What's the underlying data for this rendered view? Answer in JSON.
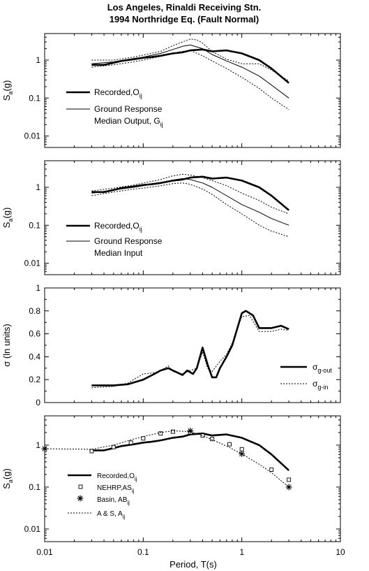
{
  "title": {
    "line1": "Los Angeles, Rinaldi Receiving Stn.",
    "line2": "1994 Northridge Eq. (Fault Normal)"
  },
  "x_axis": {
    "label": "Period, T(s)",
    "scale": "log",
    "range": [
      0.01,
      10
    ],
    "tick_labels": [
      "0.01",
      "0.1",
      "1",
      "10"
    ]
  },
  "chart_data": [
    {
      "type": "line",
      "panel": "a",
      "ylabel": "S_a(g)",
      "yscale": "log",
      "ylim": [
        0.005,
        5
      ],
      "ytick_labels": [
        "0.01",
        "0.1",
        "1"
      ],
      "legend": [
        {
          "main": "Recorded,O",
          "sub": "ij",
          "style": "thick"
        },
        {
          "main": "Ground Response",
          "style": "thin"
        },
        {
          "main": "Median Output, G",
          "sub": "ij",
          "style": "none"
        }
      ],
      "series": [
        {
          "name": "Recorded,Oij",
          "style": "thick",
          "x": [
            0.03,
            0.04,
            0.05,
            0.06,
            0.08,
            0.1,
            0.12,
            0.15,
            0.2,
            0.25,
            0.3,
            0.4,
            0.5,
            0.7,
            1.0,
            1.5,
            2.0,
            3.0
          ],
          "y": [
            0.75,
            0.75,
            0.85,
            0.95,
            1.05,
            1.15,
            1.2,
            1.3,
            1.5,
            1.6,
            1.8,
            1.9,
            1.7,
            1.8,
            1.5,
            1.0,
            0.6,
            0.25
          ]
        },
        {
          "style": "thin",
          "x": [
            0.03,
            0.05,
            0.08,
            0.1,
            0.15,
            0.2,
            0.25,
            0.3,
            0.4,
            0.5,
            0.7,
            1.0,
            1.5,
            2.0,
            3.0
          ],
          "y": [
            0.8,
            0.9,
            1.1,
            1.2,
            1.5,
            1.9,
            2.3,
            2.5,
            2.0,
            1.4,
            0.95,
            0.65,
            0.38,
            0.22,
            0.1
          ]
        },
        {
          "style": "dotted",
          "x": [
            0.03,
            0.05,
            0.08,
            0.1,
            0.15,
            0.2,
            0.25,
            0.3,
            0.35,
            0.4,
            0.5,
            0.7,
            1.0,
            1.5,
            2.0,
            3.0
          ],
          "y": [
            1.0,
            1.0,
            1.2,
            1.35,
            1.7,
            2.4,
            3.0,
            3.6,
            3.4,
            2.8,
            1.7,
            1.05,
            0.8,
            0.8,
            0.55,
            0.28
          ]
        },
        {
          "style": "dotted",
          "x": [
            0.03,
            0.05,
            0.08,
            0.1,
            0.15,
            0.2,
            0.25,
            0.3,
            0.4,
            0.5,
            0.7,
            1.0,
            1.5,
            2.0,
            3.0
          ],
          "y": [
            0.65,
            0.75,
            0.9,
            1.0,
            1.25,
            1.5,
            1.7,
            1.8,
            1.3,
            0.95,
            0.6,
            0.35,
            0.18,
            0.1,
            0.05
          ]
        }
      ]
    },
    {
      "type": "line",
      "panel": "b",
      "ylabel": "S_a(g)",
      "yscale": "log",
      "ylim": [
        0.005,
        5
      ],
      "ytick_labels": [
        "0.01",
        "0.1",
        "1"
      ],
      "legend": [
        {
          "main": "Recorded,O",
          "sub": "ij",
          "style": "thick"
        },
        {
          "main": "Ground Response",
          "style": "thin"
        },
        {
          "main": "Median Input",
          "style": "none"
        }
      ],
      "series": [
        {
          "name": "Recorded,Oij",
          "style": "thick",
          "x": [
            0.03,
            0.04,
            0.05,
            0.06,
            0.08,
            0.1,
            0.12,
            0.15,
            0.2,
            0.25,
            0.3,
            0.4,
            0.5,
            0.7,
            1.0,
            1.5,
            2.0,
            3.0
          ],
          "y": [
            0.75,
            0.75,
            0.85,
            0.95,
            1.05,
            1.15,
            1.2,
            1.3,
            1.5,
            1.6,
            1.8,
            1.9,
            1.7,
            1.8,
            1.5,
            1.0,
            0.6,
            0.25
          ]
        },
        {
          "style": "thin",
          "x": [
            0.03,
            0.05,
            0.08,
            0.1,
            0.15,
            0.2,
            0.25,
            0.3,
            0.4,
            0.5,
            0.7,
            1.0,
            1.5,
            2.0,
            3.0
          ],
          "y": [
            0.7,
            0.85,
            1.0,
            1.1,
            1.3,
            1.55,
            1.7,
            1.6,
            1.3,
            1.0,
            0.6,
            0.35,
            0.22,
            0.15,
            0.1
          ]
        },
        {
          "style": "dotted",
          "x": [
            0.03,
            0.05,
            0.08,
            0.1,
            0.15,
            0.2,
            0.25,
            0.3,
            0.4,
            0.5,
            0.7,
            1.0,
            1.5,
            2.0,
            3.0
          ],
          "y": [
            0.8,
            0.95,
            1.15,
            1.3,
            1.6,
            2.0,
            2.2,
            2.1,
            1.8,
            1.5,
            1.1,
            0.7,
            0.45,
            0.3,
            0.2
          ]
        },
        {
          "style": "dotted",
          "x": [
            0.03,
            0.05,
            0.08,
            0.1,
            0.15,
            0.2,
            0.25,
            0.3,
            0.4,
            0.5,
            0.7,
            1.0,
            1.5,
            2.0,
            3.0
          ],
          "y": [
            0.6,
            0.75,
            0.9,
            0.95,
            1.1,
            1.25,
            1.3,
            1.2,
            0.9,
            0.65,
            0.35,
            0.2,
            0.1,
            0.07,
            0.05
          ]
        }
      ]
    },
    {
      "type": "line",
      "panel": "c",
      "ylabel": "σ (ln units)",
      "yscale": "linear",
      "ylim": [
        0,
        1
      ],
      "ytick_labels": [
        "0",
        "0.2",
        "0.4",
        "0.6",
        "0.8",
        "1"
      ],
      "legend": [
        {
          "main": "σ",
          "sub": "g-out",
          "style": "thick"
        },
        {
          "main": "σ",
          "sub": "g-in",
          "style": "dotted"
        }
      ],
      "series": [
        {
          "name": "σg-out",
          "style": "thick",
          "x": [
            0.03,
            0.05,
            0.07,
            0.1,
            0.13,
            0.15,
            0.18,
            0.2,
            0.25,
            0.28,
            0.32,
            0.35,
            0.4,
            0.45,
            0.5,
            0.55,
            0.6,
            0.7,
            0.8,
            1.0,
            1.1,
            1.3,
            1.5,
            2.0,
            2.5,
            3.0
          ],
          "y": [
            0.15,
            0.15,
            0.16,
            0.2,
            0.25,
            0.28,
            0.3,
            0.28,
            0.24,
            0.28,
            0.25,
            0.3,
            0.48,
            0.33,
            0.22,
            0.22,
            0.3,
            0.4,
            0.5,
            0.78,
            0.8,
            0.76,
            0.65,
            0.65,
            0.67,
            0.64
          ]
        },
        {
          "name": "σg-in",
          "style": "dotted",
          "x": [
            0.03,
            0.05,
            0.07,
            0.08,
            0.1,
            0.13,
            0.15,
            0.18,
            0.2,
            0.25,
            0.3,
            0.35,
            0.4,
            0.45,
            0.5,
            0.6,
            0.7,
            0.8,
            1.0,
            1.2,
            1.5,
            2.0,
            2.5,
            3.0
          ],
          "y": [
            0.13,
            0.14,
            0.17,
            0.2,
            0.25,
            0.26,
            0.28,
            0.32,
            0.27,
            0.25,
            0.28,
            0.3,
            0.44,
            0.3,
            0.27,
            0.36,
            0.42,
            0.52,
            0.75,
            0.76,
            0.62,
            0.62,
            0.64,
            0.63
          ]
        }
      ]
    },
    {
      "type": "line",
      "panel": "d",
      "ylabel": "S_a(g)",
      "yscale": "log",
      "ylim": [
        0.005,
        5
      ],
      "ytick_labels": [
        "0.01",
        "0.1",
        "1"
      ],
      "legend": [
        {
          "main": "Recorded,O",
          "sub": "ij",
          "style": "thick"
        },
        {
          "main": "NEHRP,AS",
          "sub": "ij",
          "style": "square"
        },
        {
          "main": "Basin, AB",
          "sub": "ij",
          "style": "star"
        },
        {
          "main": "A & S, A",
          "sub": "ij",
          "style": "dotted"
        }
      ],
      "series": [
        {
          "name": "Recorded,Oij",
          "style": "thick",
          "x": [
            0.03,
            0.04,
            0.05,
            0.06,
            0.08,
            0.1,
            0.12,
            0.15,
            0.2,
            0.25,
            0.3,
            0.4,
            0.5,
            0.7,
            1.0,
            1.5,
            2.0,
            3.0
          ],
          "y": [
            0.75,
            0.75,
            0.85,
            0.95,
            1.05,
            1.15,
            1.2,
            1.3,
            1.5,
            1.6,
            1.8,
            1.9,
            1.7,
            1.8,
            1.5,
            1.0,
            0.6,
            0.25
          ]
        },
        {
          "name": "NEHRP,ASij",
          "style": "square",
          "x": [
            0.03,
            0.05,
            0.075,
            0.1,
            0.15,
            0.2,
            0.3,
            0.4,
            0.5,
            0.75,
            1.0,
            2.0,
            3.0
          ],
          "y": [
            0.72,
            0.9,
            1.15,
            1.45,
            1.9,
            2.1,
            2.0,
            1.7,
            1.4,
            1.05,
            0.8,
            0.26,
            0.15
          ]
        },
        {
          "name": "Basin, ABij",
          "style": "star",
          "x": [
            0.01,
            0.3,
            1.0,
            3.0
          ],
          "y": [
            0.82,
            2.2,
            0.62,
            0.1
          ]
        },
        {
          "name": "A & S, Aij",
          "style": "dotted",
          "x": [
            0.01,
            0.03,
            0.05,
            0.08,
            0.1,
            0.15,
            0.2,
            0.3,
            0.4,
            0.5,
            0.7,
            1.0,
            1.5,
            2.0,
            3.0
          ],
          "y": [
            0.82,
            0.8,
            1.0,
            1.4,
            1.6,
            2.0,
            2.2,
            2.1,
            1.7,
            1.35,
            0.95,
            0.62,
            0.35,
            0.22,
            0.1
          ]
        }
      ]
    }
  ]
}
